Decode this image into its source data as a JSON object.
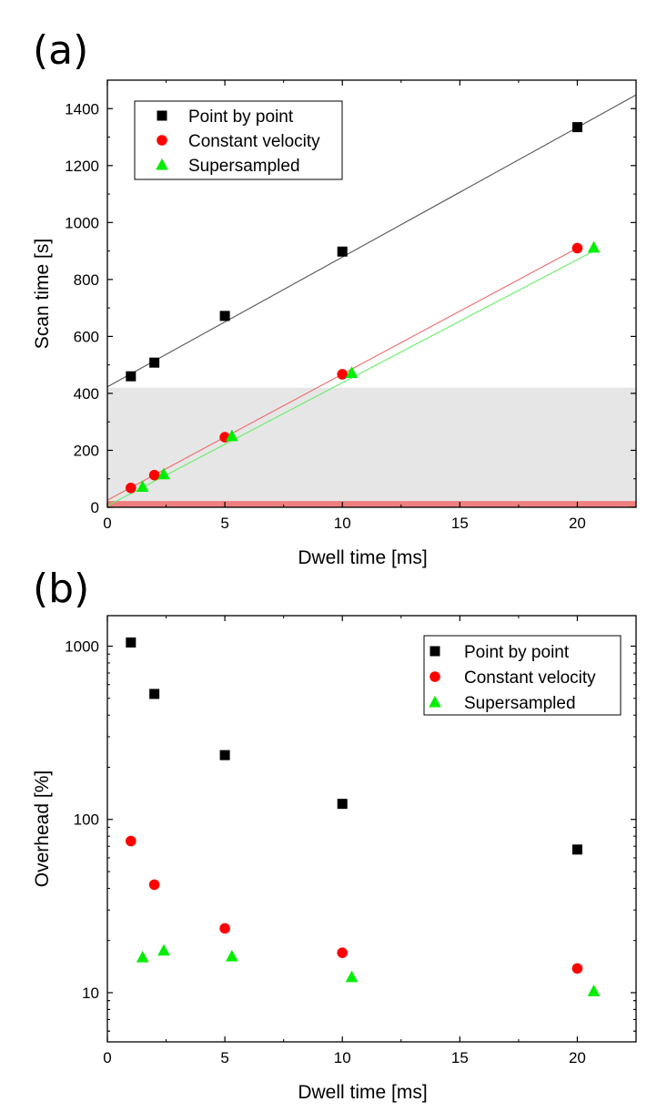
{
  "chart_data": [
    {
      "panel_label": "(a)",
      "type": "scatter",
      "xlabel": "Dwell time [ms]",
      "ylabel": "Scan time [s]",
      "xlim": [
        0,
        22.5
      ],
      "ylim": [
        0,
        1500
      ],
      "yscale": "linear",
      "x_ticks": [
        0,
        5,
        10,
        15,
        20
      ],
      "y_ticks": [
        0,
        200,
        400,
        600,
        800,
        1000,
        1200,
        1400
      ],
      "legend_position": "top-left",
      "shaded_band": {
        "from": 0,
        "to": 420,
        "color": "#e6e6e6"
      },
      "baseline_band": {
        "from": 0,
        "to": 22,
        "color": "#ef7f7f"
      },
      "series": [
        {
          "name": "Point by point",
          "marker": "square",
          "color": "#000000",
          "x": [
            1,
            2,
            5,
            10,
            20
          ],
          "y": [
            460,
            508,
            672,
            898,
            1335
          ],
          "fit": {
            "x0": 0,
            "y0": 423,
            "x1": 22.5,
            "y1": 1448,
            "color": "#555555"
          }
        },
        {
          "name": "Constant velocity",
          "marker": "circle",
          "color": "#ff0000",
          "x": [
            1,
            2,
            5,
            10,
            20
          ],
          "y": [
            68,
            113,
            246,
            467,
            910
          ],
          "fit": {
            "x0": 0,
            "y0": 25,
            "x1": 20,
            "y1": 910,
            "color": "#ef6a6a"
          }
        },
        {
          "name": "Supersampled",
          "marker": "triangle",
          "color": "#00ee00",
          "x": [
            1.5,
            2.4,
            5.3,
            10.4,
            20.7
          ],
          "y": [
            72,
            116,
            250,
            472,
            912
          ],
          "fit": {
            "x0": 0,
            "y0": 5,
            "x1": 20.7,
            "y1": 900,
            "color": "#66ee66"
          }
        }
      ]
    },
    {
      "panel_label": "(b)",
      "type": "scatter",
      "xlabel": "Dwell time [ms]",
      "ylabel": "Overhead [%]",
      "xlim": [
        0,
        22.5
      ],
      "ylim": [
        5.2,
        1500
      ],
      "yscale": "log",
      "x_ticks": [
        0,
        5,
        10,
        15,
        20
      ],
      "y_ticks": [
        10,
        100,
        1000
      ],
      "legend_position": "top-right",
      "series": [
        {
          "name": "Point by point",
          "marker": "square",
          "color": "#000000",
          "x": [
            1,
            2,
            5,
            10,
            20
          ],
          "y": [
            1050,
            530,
            235,
            123,
            67
          ]
        },
        {
          "name": "Constant velocity",
          "marker": "circle",
          "color": "#ff0000",
          "x": [
            1,
            2,
            5,
            10,
            20
          ],
          "y": [
            75,
            42,
            23.5,
            17,
            13.8
          ]
        },
        {
          "name": "Supersampled",
          "marker": "triangle",
          "color": "#00ee00",
          "x": [
            1.5,
            2.4,
            5.3,
            10.4,
            20.7
          ],
          "y": [
            16,
            17.5,
            16.2,
            12.3,
            10.2
          ]
        }
      ]
    }
  ]
}
